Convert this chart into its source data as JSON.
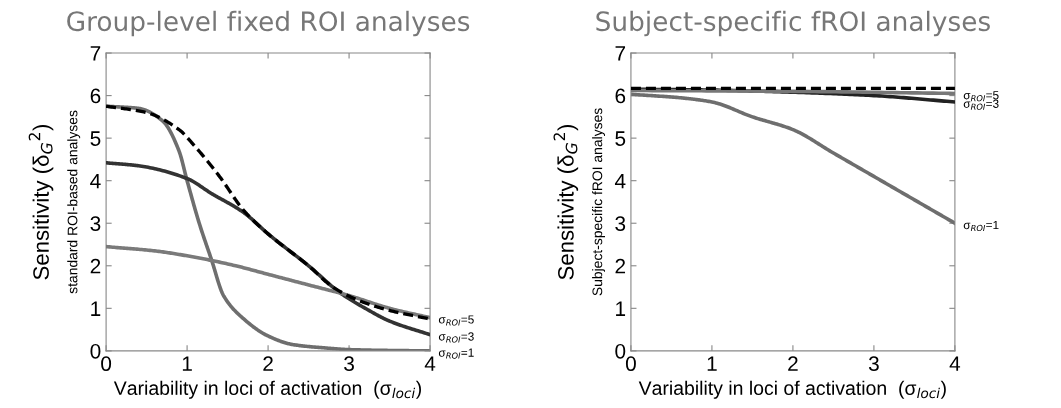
{
  "chart_data": [
    {
      "type": "line",
      "title": "Group-level fixed ROI analyses",
      "xlabel": "Variability in loci of activation  (σ$_{loci}$)",
      "ylabel": "Sensitivity (δ$_{G}$$^{2}$)",
      "annotations": [
        "standard ROI-based analyses"
      ],
      "xlim": [
        0,
        4
      ],
      "ylim": [
        0,
        7
      ],
      "xticks": [
        0,
        1,
        2,
        3,
        4
      ],
      "yticks": [
        0,
        1,
        2,
        3,
        4,
        5,
        6,
        7
      ],
      "grid": false,
      "legend": "right",
      "marker": "none",
      "series": [
        {
          "name": "σ$_{ROI}$=1",
          "color": "#6e6e6e",
          "x": [
            0,
            0.4,
            0.7,
            0.9,
            1.0,
            1.15,
            1.3,
            1.45,
            1.7,
            2.0,
            2.3,
            2.7,
            3.0,
            3.5,
            4.0
          ],
          "values": [
            5.75,
            5.7,
            5.4,
            4.7,
            4.0,
            3.0,
            2.15,
            1.3,
            0.75,
            0.35,
            0.15,
            0.07,
            0.03,
            0.01,
            0.0
          ]
        },
        {
          "name": "σ$_{ROI}$=3",
          "color": "#333333",
          "x": [
            0,
            0.4,
            1.0,
            1.3,
            1.7,
            2.0,
            2.5,
            2.9,
            3.2,
            3.5,
            4.0
          ],
          "values": [
            4.42,
            4.35,
            4.05,
            3.7,
            3.25,
            2.75,
            2.0,
            1.35,
            1.0,
            0.7,
            0.38
          ]
        },
        {
          "name": "σ$_{ROI}$=5",
          "color": "#7a7a7a",
          "x": [
            0,
            0.6,
            1.1,
            1.6,
            2.0,
            2.5,
            3.0,
            3.5,
            4.0
          ],
          "values": [
            2.45,
            2.35,
            2.2,
            2.0,
            1.8,
            1.55,
            1.3,
            1.0,
            0.78
          ]
        },
        {
          "color": "#000000",
          "line_style": "dashed",
          "x": [
            0,
            0.5,
            0.9,
            1.1,
            1.4,
            1.7,
            2.0,
            2.5,
            2.8,
            3.1,
            3.5,
            4.0
          ],
          "values": [
            5.75,
            5.6,
            5.2,
            4.8,
            4.1,
            3.3,
            2.75,
            2.0,
            1.5,
            1.2,
            0.95,
            0.75
          ]
        }
      ]
    },
    {
      "type": "line",
      "title": "Subject-specific fROI analyses",
      "xlabel": "Variability in loci of activation  (σ$_{loci}$)",
      "ylabel": "Sensitivity (δ$_{G}$$^{2}$)",
      "annotations": [
        "Subject-specific fROI analyses"
      ],
      "xlim": [
        0,
        4
      ],
      "ylim": [
        0,
        7
      ],
      "xticks": [
        0,
        1,
        2,
        3,
        4
      ],
      "yticks": [
        0,
        1,
        2,
        3,
        4,
        5,
        6,
        7
      ],
      "grid": false,
      "legend": "right",
      "marker": "none",
      "series": [
        {
          "name": "σ$_{ROI}$=1",
          "color": "#6e6e6e",
          "x": [
            0,
            0.6,
            1.0,
            1.5,
            2.0,
            2.5,
            3.0,
            3.5,
            4.0
          ],
          "values": [
            6.03,
            5.95,
            5.85,
            5.5,
            5.2,
            4.65,
            4.1,
            3.55,
            3.0
          ]
        },
        {
          "name": "σ$_{ROI}$=3",
          "color": "#222222",
          "x": [
            0,
            1.0,
            2.0,
            3.0,
            4.0
          ],
          "values": [
            6.15,
            6.13,
            6.08,
            6.0,
            5.85
          ]
        },
        {
          "name": "σ$_{ROI}$=5",
          "color": "#777777",
          "x": [
            0,
            2.0,
            4.0
          ],
          "values": [
            6.12,
            6.1,
            6.05
          ]
        },
        {
          "color": "#000000",
          "line_style": "dashed",
          "x": [
            0,
            4.0
          ],
          "values": [
            6.17,
            6.17
          ]
        }
      ]
    }
  ]
}
